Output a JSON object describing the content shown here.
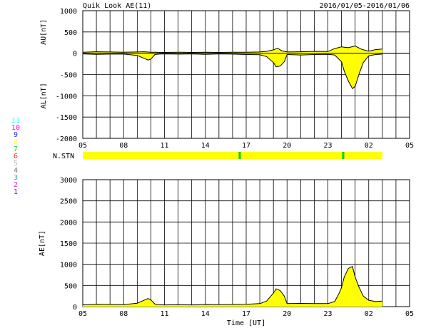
{
  "header": {
    "title": "Quik Look AE(11)",
    "date_range": "2016/01/05-2016/01/06"
  },
  "colors": {
    "fill": "#ffff00",
    "station_bar": "#ffff00",
    "station_gap": "#00cc00",
    "axis": "#000000"
  },
  "station_legend": [
    {
      "label": "11",
      "color": "#33ffff"
    },
    {
      "label": "10",
      "color": "#ff00ff"
    },
    {
      "label": "9",
      "color": "#3333cc"
    },
    {
      "label": "8",
      "color": "#ffff66"
    },
    {
      "label": "7",
      "color": "#33cc33"
    },
    {
      "label": "6",
      "color": "#ff3333"
    },
    {
      "label": "5",
      "color": "#bbbbbb"
    },
    {
      "label": "4",
      "color": "#777777"
    },
    {
      "label": "3",
      "color": "#33aaaa"
    },
    {
      "label": "2",
      "color": "#cc33cc"
    },
    {
      "label": "1",
      "color": "#3333cc"
    }
  ],
  "chart_data": [
    {
      "type": "area",
      "name": "AU/AL panel",
      "x_unit": "hours (UT) from 2016/01/05 05:00",
      "xlim": [
        0,
        24
      ],
      "x_ticks": [
        0,
        3,
        6,
        9,
        12,
        15,
        18,
        21,
        24
      ],
      "x_tick_labels": [
        "05",
        "08",
        "11",
        "14",
        "17",
        "20",
        "23",
        "02",
        "05"
      ],
      "ylim": [
        -2000,
        1000
      ],
      "y_ticks": [
        1000,
        500,
        0,
        -500,
        -1000,
        -1500,
        -2000
      ],
      "y_tick_labels": [
        "1000",
        "500",
        "0",
        "-500",
        "-1000",
        "-1500",
        "-2000"
      ],
      "ylabel_upper": "AU[nT]",
      "ylabel_lower": "AL[nT]",
      "grid": true,
      "series": [
        {
          "name": "AU",
          "x": [
            0,
            1,
            2,
            3,
            4,
            4.5,
            5,
            5.3,
            6,
            7,
            8,
            9,
            10,
            11,
            12,
            13,
            13.5,
            14,
            14.3,
            14.6,
            15,
            16,
            17,
            18,
            18.5,
            19,
            19.5,
            20,
            20.5,
            21,
            21.5,
            22
          ],
          "y": [
            25,
            35,
            30,
            25,
            30,
            35,
            25,
            25,
            20,
            25,
            20,
            25,
            20,
            25,
            25,
            30,
            45,
            80,
            120,
            60,
            30,
            35,
            45,
            40,
            110,
            150,
            130,
            170,
            90,
            50,
            85,
            100
          ]
        },
        {
          "name": "AL",
          "x": [
            0,
            1,
            2,
            3,
            4,
            4.5,
            4.8,
            5,
            5.3,
            5.6,
            6,
            7,
            8,
            9,
            10,
            11,
            12,
            13,
            13.5,
            14,
            14.2,
            14.5,
            14.8,
            15,
            16,
            17,
            18,
            18.5,
            19,
            19.2,
            19.5,
            19.8,
            20,
            20.3,
            20.6,
            21,
            21.5,
            22
          ],
          "y": [
            -15,
            -25,
            -20,
            -20,
            -50,
            -120,
            -160,
            -140,
            -30,
            -20,
            -15,
            -20,
            -15,
            -25,
            -15,
            -20,
            -30,
            -35,
            -80,
            -220,
            -320,
            -300,
            -200,
            -30,
            -40,
            -30,
            -25,
            -40,
            -200,
            -420,
            -650,
            -830,
            -780,
            -480,
            -220,
            -60,
            -30,
            -20
          ]
        }
      ],
      "station_bar": {
        "label": "N.STN",
        "range": [
          0,
          22
        ],
        "gaps": [
          11.5,
          19.1
        ]
      }
    },
    {
      "type": "area",
      "name": "AE panel",
      "x_unit": "hours (UT) from 2016/01/05 05:00",
      "xlim": [
        0,
        24
      ],
      "x_ticks": [
        0,
        3,
        6,
        9,
        12,
        15,
        18,
        21,
        24
      ],
      "x_tick_labels": [
        "05",
        "08",
        "11",
        "14",
        "17",
        "20",
        "23",
        "02",
        "05"
      ],
      "ylim": [
        0,
        3000
      ],
      "y_ticks": [
        3000,
        2500,
        2000,
        1500,
        1000,
        500,
        0
      ],
      "y_tick_labels": [
        "3000",
        "2500",
        "2000",
        "1500",
        "1000",
        "500",
        "0"
      ],
      "ylabel": "AE[nT]",
      "xlabel": "Time [UT]",
      "grid": true,
      "series": [
        {
          "name": "AE",
          "x": [
            0,
            1,
            2,
            3,
            4,
            4.5,
            4.8,
            5,
            5.3,
            5.6,
            6,
            7,
            8,
            9,
            10,
            11,
            12,
            13,
            13.5,
            14,
            14.2,
            14.5,
            14.8,
            15,
            16,
            17,
            18,
            18.5,
            18.8,
            19,
            19.2,
            19.5,
            19.8,
            20,
            20.3,
            20.6,
            21,
            21.5,
            22
          ],
          "y": [
            40,
            55,
            50,
            45,
            80,
            150,
            190,
            160,
            60,
            45,
            40,
            45,
            40,
            50,
            45,
            50,
            55,
            70,
            130,
            320,
            420,
            380,
            250,
            70,
            75,
            70,
            70,
            120,
            300,
            450,
            700,
            900,
            950,
            700,
            450,
            250,
            150,
            120,
            130
          ]
        }
      ]
    }
  ],
  "ui": {
    "ae_ylabel": "AE[nT]"
  }
}
